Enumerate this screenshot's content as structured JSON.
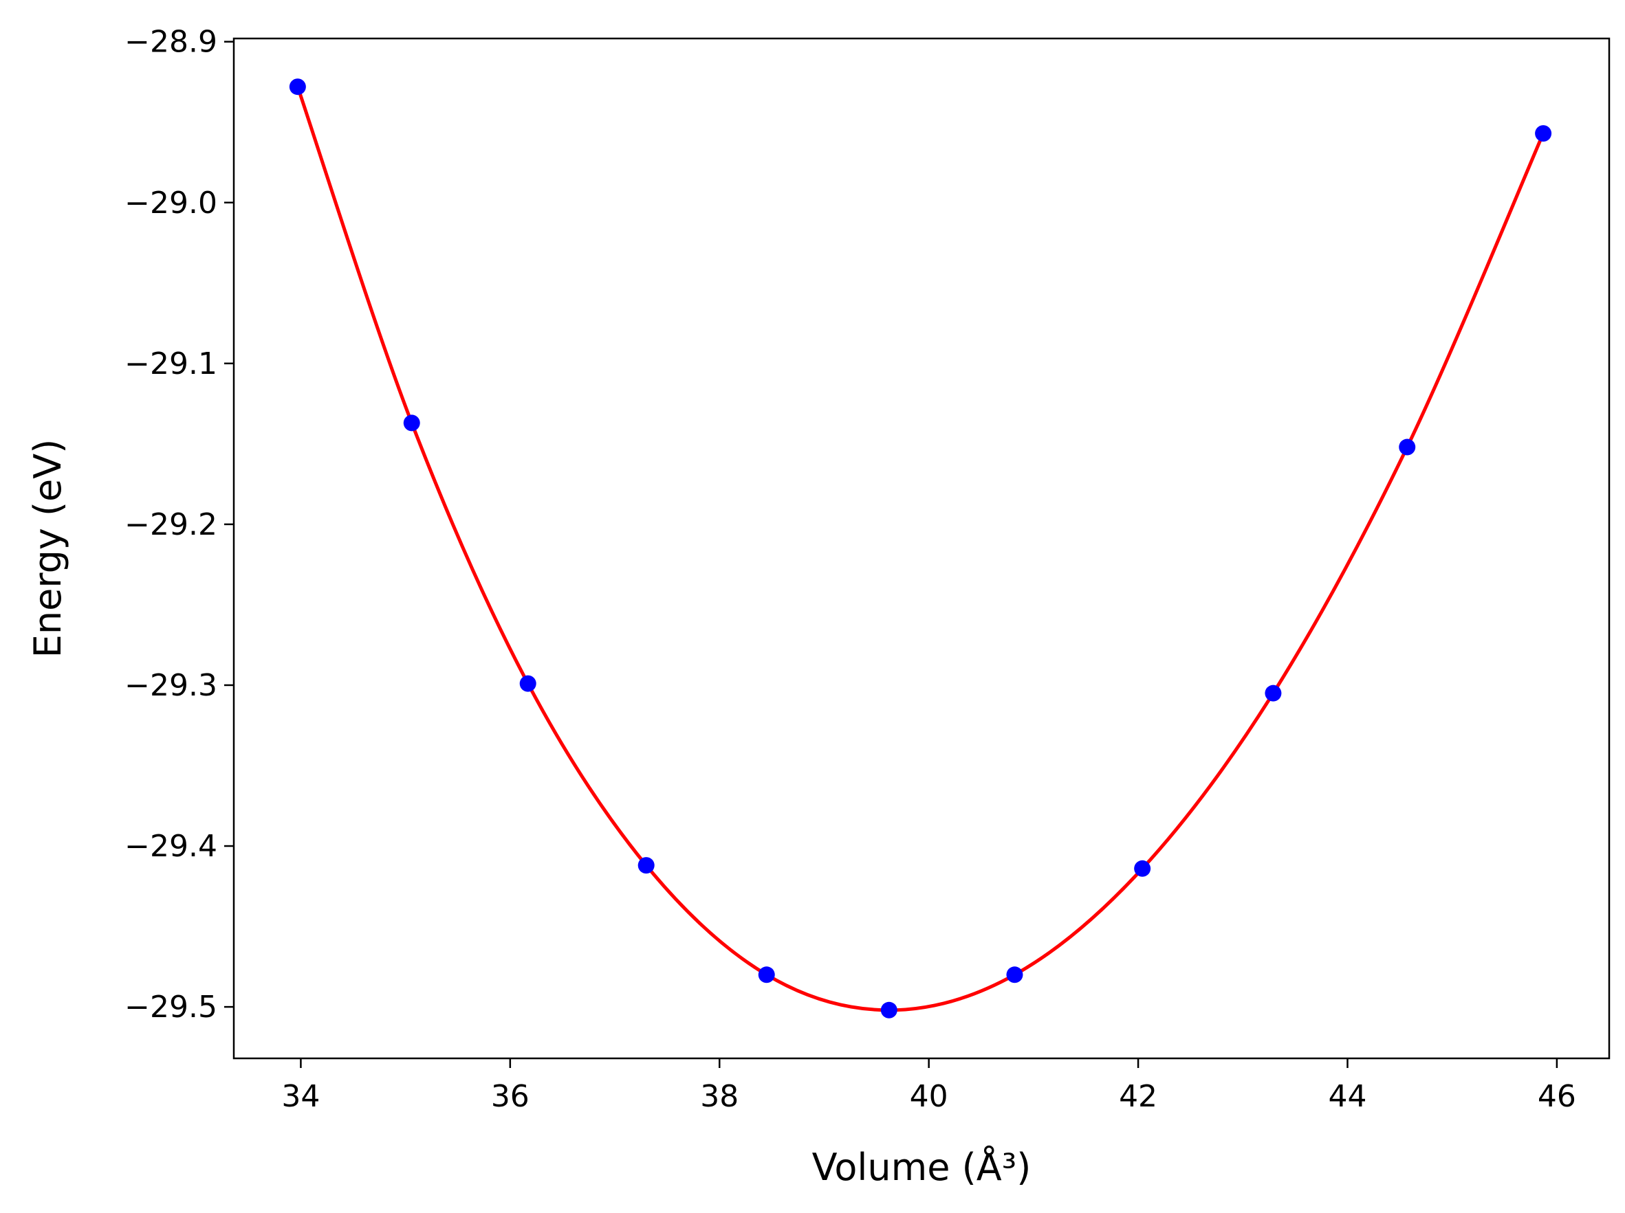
{
  "chart_data": {
    "type": "line",
    "title": "",
    "xlabel": "Volume (Å³)",
    "ylabel": "Energy (eV)",
    "xlim": [
      33.36,
      46.5
    ],
    "ylim": [
      -29.532,
      -28.898
    ],
    "x_ticks": [
      34,
      36,
      38,
      40,
      42,
      44,
      46
    ],
    "y_ticks": [
      -28.9,
      -29.0,
      -29.1,
      -29.2,
      -29.3,
      -29.4,
      -29.5
    ],
    "x_tick_labels": [
      "34",
      "36",
      "38",
      "40",
      "42",
      "44",
      "46"
    ],
    "y_tick_labels": [
      "−28.9",
      "−29.0",
      "−29.1",
      "−29.2",
      "−29.3",
      "−29.4",
      "−29.5"
    ],
    "grid": false,
    "legend": "none",
    "series": [
      {
        "kind": "scatter",
        "color": "#0000ff",
        "x": [
          33.97,
          35.06,
          36.17,
          37.3,
          38.45,
          39.62,
          40.82,
          42.04,
          43.29,
          44.57,
          45.87
        ],
        "y": [
          -28.928,
          -29.137,
          -29.299,
          -29.412,
          -29.48,
          -29.502,
          -29.48,
          -29.414,
          -29.305,
          -29.152,
          -28.957
        ]
      },
      {
        "kind": "fit-line",
        "color": "#ff0000",
        "x": [
          33.97,
          35.06,
          36.17,
          37.3,
          38.45,
          39.62,
          40.82,
          42.04,
          43.29,
          44.57,
          45.87
        ],
        "y": [
          -28.928,
          -29.137,
          -29.299,
          -29.412,
          -29.48,
          -29.502,
          -29.48,
          -29.414,
          -29.305,
          -29.152,
          -28.957
        ]
      }
    ]
  }
}
